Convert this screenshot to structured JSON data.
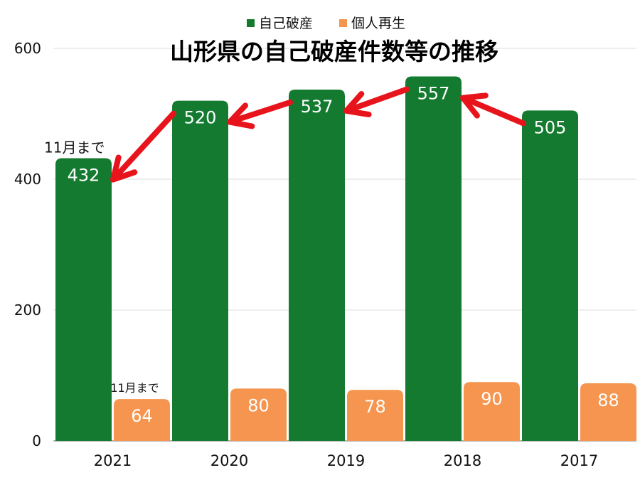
{
  "chart_data": {
    "type": "bar",
    "title": "山形県の自己破産件数等の推移",
    "categories": [
      "2021",
      "2020",
      "2019",
      "2018",
      "2017"
    ],
    "series": [
      {
        "name": "自己破産",
        "color": "#137a2f",
        "values": [
          432,
          520,
          537,
          557,
          505
        ]
      },
      {
        "name": "個人再生",
        "color": "#f5954f",
        "values": [
          64,
          80,
          78,
          90,
          88
        ]
      }
    ],
    "y_ticks": [
      0,
      200,
      400,
      600
    ],
    "ylim": [
      0,
      600
    ],
    "grid": true,
    "legend": "top-center",
    "annotations": [
      {
        "category": "2021",
        "series": "自己破産",
        "text": "11月まで"
      },
      {
        "category": "2021",
        "series": "個人再生",
        "text": "11月まで"
      }
    ],
    "arrow_color": "#e8141c"
  }
}
